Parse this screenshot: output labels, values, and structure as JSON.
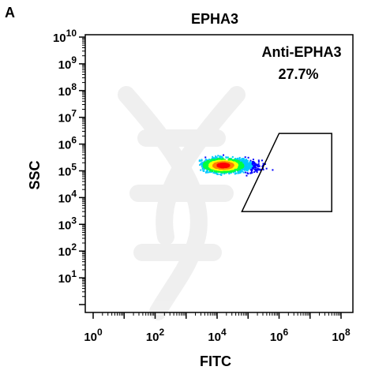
{
  "panel_letter": "A",
  "chart_data": {
    "type": "scatter",
    "title": "EPHA3",
    "xlabel": "FITC",
    "ylabel": "SSC",
    "x_scale": "log",
    "y_scale": "log",
    "xlim": [
      1,
      100000000
    ],
    "ylim": [
      1,
      10000000000
    ],
    "x_ticks": [
      {
        "value": 1,
        "label": "10^0"
      },
      {
        "value": 100,
        "label": "10^2"
      },
      {
        "value": 10000,
        "label": "10^4"
      },
      {
        "value": 1000000,
        "label": "10^6"
      },
      {
        "value": 100000000,
        "label": "10^8"
      }
    ],
    "y_ticks": [
      {
        "value": 10,
        "label": "10^1"
      },
      {
        "value": 100,
        "label": "10^2"
      },
      {
        "value": 1000,
        "label": "10^3"
      },
      {
        "value": 10000,
        "label": "10^4"
      },
      {
        "value": 100000,
        "label": "10^5"
      },
      {
        "value": 1000000,
        "label": "10^6"
      },
      {
        "value": 10000000,
        "label": "10^7"
      },
      {
        "value": 100000000,
        "label": "10^8"
      },
      {
        "value": 1000000000,
        "label": "10^9"
      },
      {
        "value": 10000000000,
        "label": "10^10"
      }
    ],
    "gate": {
      "label": "Anti-EPHA3",
      "percent": "27.7%",
      "vertices": [
        [
          1000000,
          2500000
        ],
        [
          50000000,
          2500000
        ],
        [
          50000000,
          3000
        ],
        [
          63000,
          3000
        ]
      ]
    },
    "population": {
      "center_x": 15000,
      "center_y": 170000,
      "x_log_range": [
        3.4,
        6.6
      ],
      "y_log_range": [
        4.5,
        6.0
      ],
      "peak_color": "#ff0000",
      "color_scale": [
        "#0000ff",
        "#00c8ff",
        "#00ff40",
        "#ffff00",
        "#ff8000",
        "#ff0000"
      ]
    },
    "grid": false,
    "legend": "none"
  }
}
